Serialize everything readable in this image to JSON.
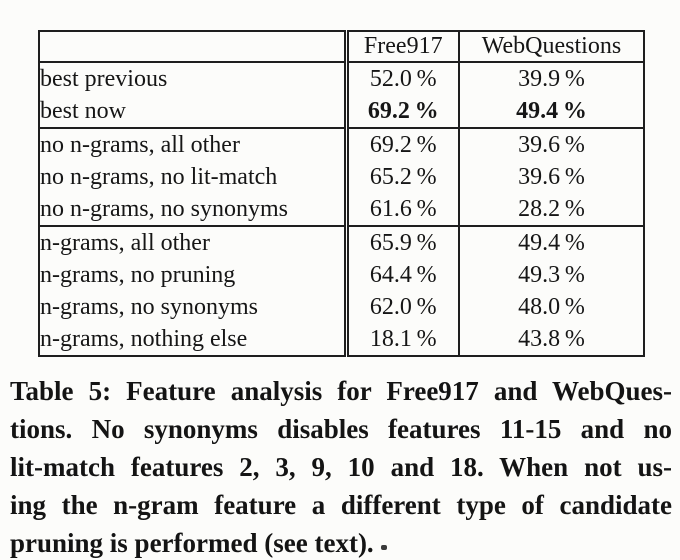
{
  "table": {
    "header": {
      "label": "",
      "free917": "Free917",
      "webquestions": "WebQuestions"
    },
    "rows": [
      {
        "label": "best previous",
        "free917": "52.0 %",
        "webquestions": "39.9 %"
      },
      {
        "label": "best now",
        "free917": "69.2 %",
        "webquestions": "49.4 %"
      },
      {
        "label": "no n-grams, all other",
        "free917": "69.2 %",
        "webquestions": "39.6 %"
      },
      {
        "label": "no n-grams, no lit-match",
        "free917": "65.2 %",
        "webquestions": "39.6 %"
      },
      {
        "label": "no n-grams, no synonyms",
        "free917": "61.6 %",
        "webquestions": "28.2 %"
      },
      {
        "label": "n-grams, all other",
        "free917": "65.9 %",
        "webquestions": "49.4 %"
      },
      {
        "label": "n-grams, no pruning",
        "free917": "64.4 %",
        "webquestions": "49.3 %"
      },
      {
        "label": "n-grams, no synonyms",
        "free917": "62.0 %",
        "webquestions": "48.0 %"
      },
      {
        "label": "n-grams, nothing else",
        "free917": "18.1 %",
        "webquestions": "43.8 %"
      }
    ]
  },
  "caption": {
    "lines": [
      "Table 5: Feature analysis for Free917 and WebQues-",
      "tions.  No synonyms disables features 11-15 and no",
      "lit-match features 2, 3, 9, 10 and 18.  When not us-",
      "ing the n-gram feature a different type of candidate",
      "pruning is performed (see text)."
    ],
    "full_text": "Table 5: Feature analysis for Free917 and WebQuestions. No synonyms disables features 11-15 and no lit-match features 2, 3, 9, 10 and 18. When not using the n-gram feature a different type of candidate pruning is performed (see text)."
  },
  "colors": {
    "text": "#161616",
    "border": "#1e1e1e",
    "background": "#fcfcfa"
  }
}
